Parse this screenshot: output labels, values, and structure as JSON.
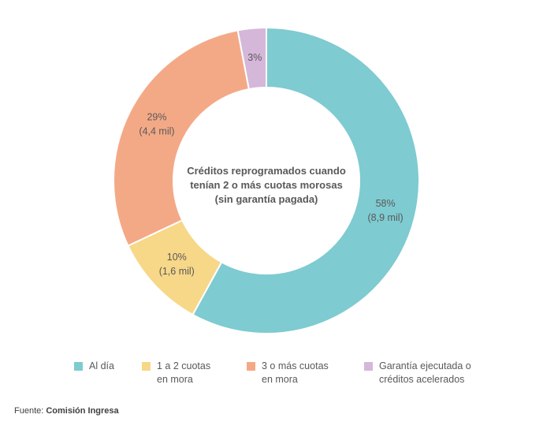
{
  "chart_data": {
    "type": "pie",
    "variant": "donut",
    "center_title": [
      "Créditos reprogramados cuando",
      "tenían 2 o más cuotas morosas",
      "(sin garantía pagada)"
    ],
    "slices": [
      {
        "name": "Al día",
        "value": 58,
        "pct_label": "58%",
        "amount_label": "(8,9 mil)",
        "color": "#7ECBD1"
      },
      {
        "name": "1 a 2 cuotas\nen mora",
        "value": 10,
        "pct_label": "10%",
        "amount_label": "(1,6 mil)",
        "color": "#F7D788"
      },
      {
        "name": "3 o más cuotas\nen mora",
        "value": 29,
        "pct_label": "29%",
        "amount_label": "(4,4 mil)",
        "color": "#F4A986"
      },
      {
        "name": "Garantía ejecutada o\ncréditos acelerados",
        "value": 3,
        "pct_label": "3%",
        "amount_label": "",
        "color": "#D5B7DA"
      }
    ],
    "legend_position": "bottom"
  },
  "source": {
    "prefix": "Fuente: ",
    "name": "Comisión Ingresa"
  }
}
